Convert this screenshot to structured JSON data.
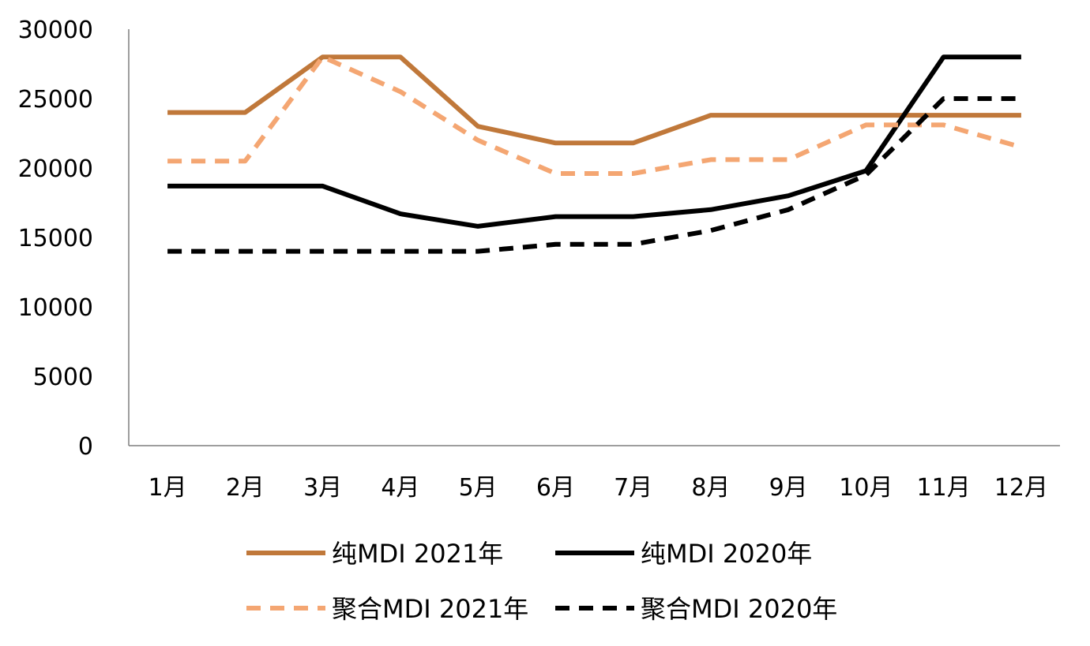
{
  "chart_data": {
    "type": "line",
    "title": "",
    "xlabel": "",
    "ylabel": "",
    "categories": [
      "1月",
      "2月",
      "3月",
      "4月",
      "5月",
      "6月",
      "7月",
      "8月",
      "9月",
      "10月",
      "11月",
      "12月"
    ],
    "ylim": [
      0,
      30000
    ],
    "yticks": [
      "0",
      "5000",
      "10000",
      "15000",
      "20000",
      "25000",
      "30000"
    ],
    "grid": false,
    "legend_position": "bottom",
    "series": [
      {
        "name": "纯MDI 2021年",
        "color": "#C0783A",
        "dash": "solid",
        "values": [
          24000,
          24000,
          28000,
          28000,
          23000,
          21800,
          21800,
          23800,
          23800,
          23800,
          23800,
          23800
        ]
      },
      {
        "name": "纯MDI 2020年",
        "color": "#000000",
        "dash": "solid",
        "values": [
          18700,
          18700,
          18700,
          16700,
          15800,
          16500,
          16500,
          17000,
          18000,
          19800,
          28000,
          28000
        ]
      },
      {
        "name": "聚合MDI 2021年",
        "color": "#F4A672",
        "dash": "dashed",
        "values": [
          20500,
          20500,
          28000,
          25500,
          22000,
          19600,
          19600,
          20600,
          20600,
          23100,
          23100,
          21500
        ]
      },
      {
        "name": "聚合MDI 2020年",
        "color": "#000000",
        "dash": "dashed",
        "values": [
          14000,
          14000,
          14000,
          14000,
          14000,
          14500,
          14500,
          15500,
          17000,
          19500,
          25000,
          25000
        ]
      }
    ]
  }
}
